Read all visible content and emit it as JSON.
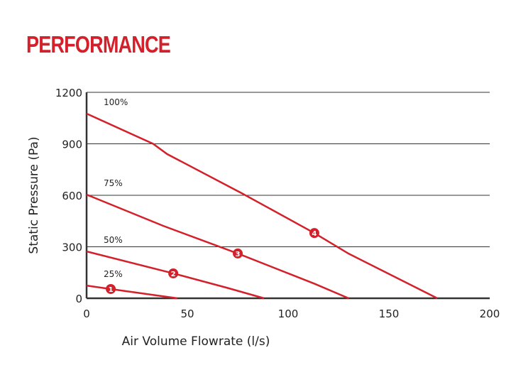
{
  "title": "PERFORMANCE",
  "chart_data": {
    "type": "line",
    "xlabel": "Air Volume Flowrate (l/s)",
    "ylabel": "Static Pressure (Pa)",
    "xlim": [
      0,
      200
    ],
    "ylim": [
      0,
      1200
    ],
    "xticks": [
      "0",
      "50",
      "100",
      "150",
      "200"
    ],
    "yticks": [
      "0",
      "300",
      "600",
      "900",
      "1200"
    ],
    "grid": "horizontal",
    "color": "#d4202a",
    "series": [
      {
        "name": "25%",
        "x": [
          0,
          12,
          45
        ],
        "y": [
          74,
          54,
          0
        ],
        "marker": {
          "label": "1",
          "x": 12,
          "y": 54
        }
      },
      {
        "name": "50%",
        "x": [
          0,
          43,
          70,
          88
        ],
        "y": [
          273,
          145,
          60,
          0
        ],
        "marker": {
          "label": "2",
          "x": 43,
          "y": 145
        }
      },
      {
        "name": "75%",
        "x": [
          0,
          38,
          75,
          113,
          130
        ],
        "y": [
          604,
          422,
          261,
          85,
          0
        ],
        "marker": {
          "label": "3",
          "x": 75,
          "y": 261
        }
      },
      {
        "name": "100%",
        "x": [
          0,
          33,
          40,
          77,
          113,
          130,
          174
        ],
        "y": [
          1076,
          900,
          840,
          612,
          380,
          260,
          0
        ],
        "marker": {
          "label": "4",
          "x": 113,
          "y": 380
        }
      }
    ]
  }
}
